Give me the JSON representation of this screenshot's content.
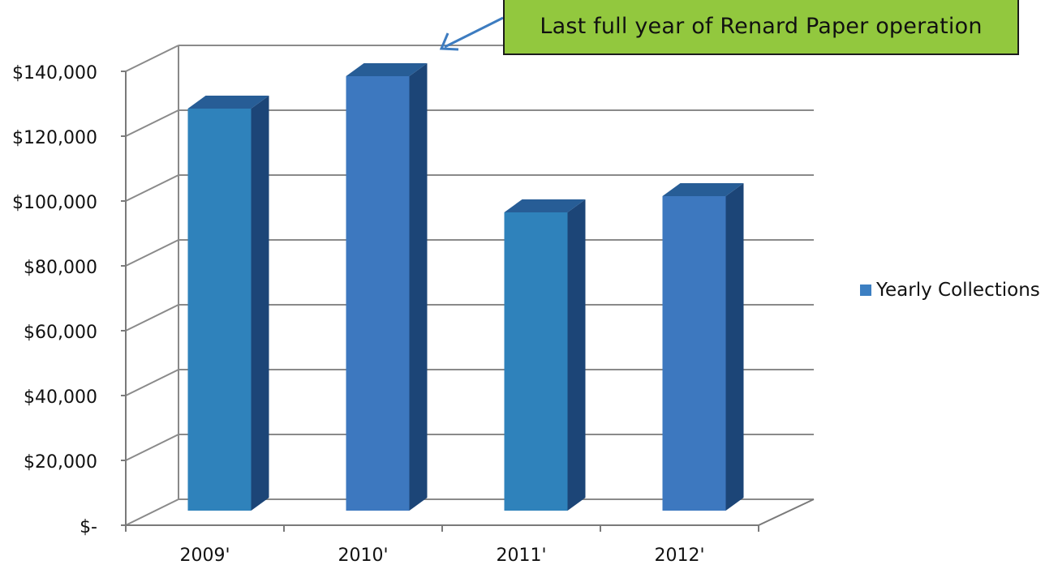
{
  "chart_data": {
    "type": "bar",
    "categories": [
      "2009'",
      "2010'",
      "2011'",
      "2012'"
    ],
    "series": [
      {
        "name": "Yearly Collections",
        "values": [
          124000,
          134000,
          92000,
          97000
        ]
      }
    ],
    "y_ticks": [
      "$-",
      "$20,000",
      "$40,000",
      "$60,000",
      "$80,000",
      "$100,000",
      "$120,000",
      "$140,000"
    ],
    "ylim": [
      0,
      140000
    ],
    "grid": true,
    "legend_position": "right",
    "annotation": "Last full year of Renard Paper operation",
    "colors": {
      "bar_front": "#2f82bb",
      "bar_front_alt": "#3d78bf",
      "bar_side": "#1c4577",
      "bar_top": "#275d96",
      "grid": "#8a8a8a",
      "axis": "#7a7a7a",
      "arrow": "#3d7cc0",
      "callout_fill": "#92c83e"
    }
  }
}
